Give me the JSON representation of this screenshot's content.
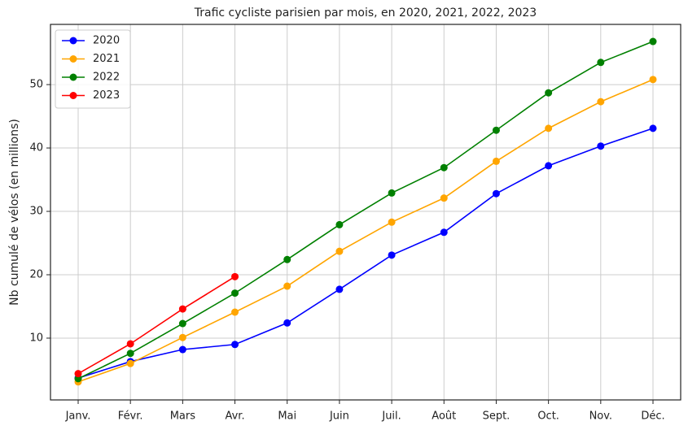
{
  "chart_data": {
    "type": "line",
    "title": "Trafic cycliste parisien par mois, en 2020, 2021, 2022, 2023",
    "ylabel": "Nb cumulé de vélos (en millions)",
    "categories": [
      "Janv.",
      "Févr.",
      "Mars",
      "Avr.",
      "Mai",
      "Juin",
      "Juil.",
      "Août",
      "Sept.",
      "Oct.",
      "Nov.",
      "Déc."
    ],
    "series": [
      {
        "name": "2020",
        "color": "#0000ff",
        "values": [
          3.7,
          6.3,
          8.2,
          9.0,
          12.4,
          17.7,
          23.1,
          26.7,
          32.8,
          37.2,
          40.3,
          43.1
        ]
      },
      {
        "name": "2021",
        "color": "#ffa500",
        "values": [
          3.1,
          6.0,
          10.1,
          14.1,
          18.2,
          23.7,
          28.3,
          32.1,
          37.9,
          43.1,
          47.3,
          50.8
        ]
      },
      {
        "name": "2022",
        "color": "#008000",
        "values": [
          3.6,
          7.6,
          12.3,
          17.1,
          22.4,
          27.9,
          32.9,
          36.9,
          42.8,
          48.7,
          53.5,
          56.8
        ]
      },
      {
        "name": "2023",
        "color": "#ff0000",
        "values": [
          4.4,
          9.1,
          14.6,
          19.7,
          null,
          null,
          null,
          null,
          null,
          null,
          null,
          null
        ]
      }
    ],
    "ylim": [
      0.25,
      59.5
    ],
    "yticks": [
      10,
      20,
      30,
      40,
      50
    ],
    "grid": true,
    "legend": "upper left"
  }
}
